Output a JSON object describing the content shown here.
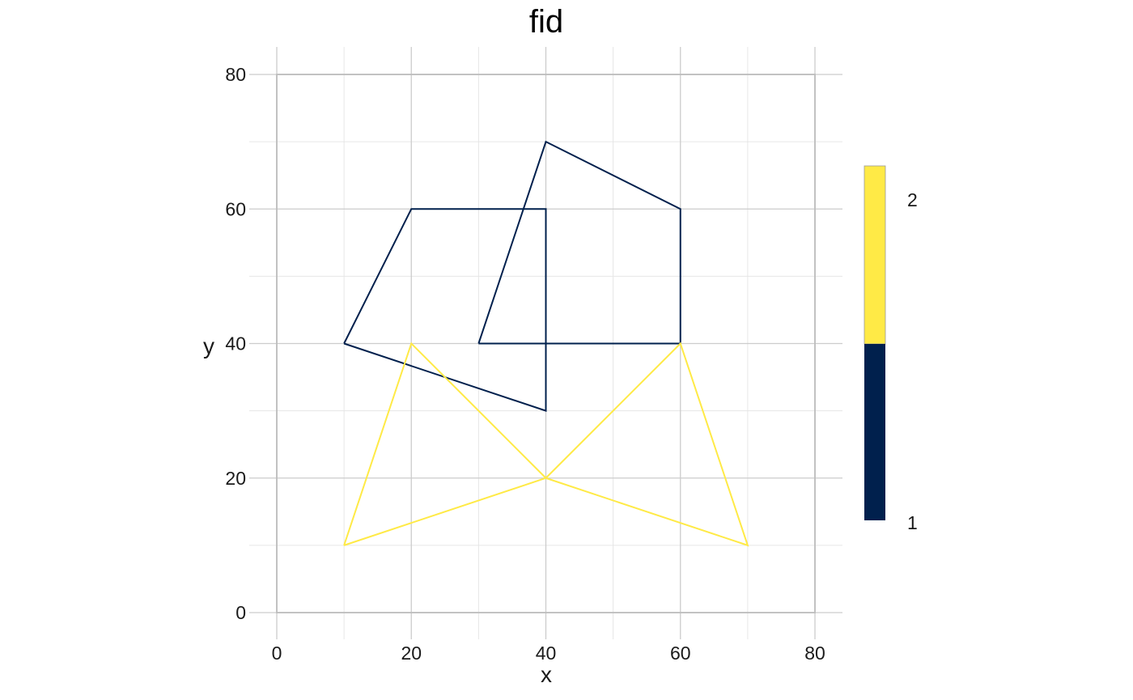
{
  "chart_data": {
    "type": "line",
    "title": "fid",
    "xlabel": "x",
    "ylabel": "y",
    "xlim": [
      0,
      80
    ],
    "ylim": [
      0,
      80
    ],
    "x_ticks": [
      0,
      20,
      40,
      60,
      80
    ],
    "y_ticks": [
      0,
      20,
      40,
      60,
      80
    ],
    "grid": true,
    "series": [
      {
        "name": "1",
        "color": "#00204D",
        "lines": [
          [
            [
              10,
              40
            ],
            [
              20,
              60
            ],
            [
              40,
              60
            ],
            [
              40,
              30
            ],
            [
              10,
              40
            ]
          ],
          [
            [
              30,
              40
            ],
            [
              40,
              70
            ],
            [
              60,
              60
            ],
            [
              60,
              40
            ],
            [
              30,
              40
            ]
          ]
        ]
      },
      {
        "name": "2",
        "color": "#FFEA46",
        "lines": [
          [
            [
              10,
              10
            ],
            [
              20,
              40
            ],
            [
              40,
              20
            ],
            [
              10,
              10
            ]
          ],
          [
            [
              40,
              20
            ],
            [
              60,
              40
            ],
            [
              70,
              10
            ],
            [
              40,
              20
            ]
          ]
        ]
      }
    ],
    "legend": {
      "position": "right",
      "type": "colorbar",
      "labels": [
        "2",
        "1"
      ],
      "colors": [
        "#FFEA46",
        "#00204D"
      ]
    }
  }
}
